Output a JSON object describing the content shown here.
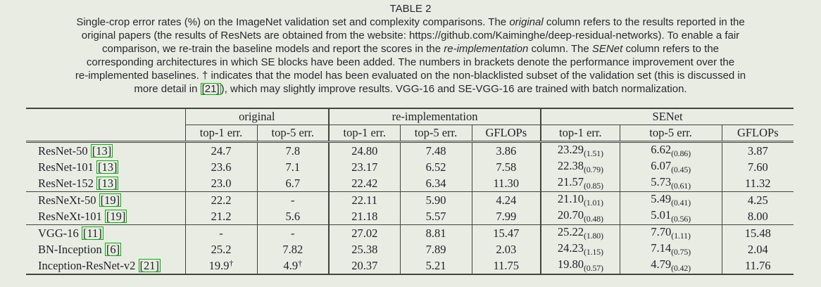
{
  "page": {
    "background_color": "#e9ece3",
    "text_color": "#23262b",
    "rule_color": "#41443f",
    "link_box_color": "#00b400"
  },
  "caption": {
    "title": "TABLE 2",
    "lines": [
      [
        {
          "t": "Single-crop error rates (%) on the ImageNet validation set and complexity comparisons. The "
        },
        {
          "t": "original",
          "i": true
        },
        {
          "t": " column refers to the results reported in the"
        }
      ],
      [
        {
          "t": "original papers (the results of ResNets are obtained from the website: https://github.com/Kaiminghe/deep-residual-networks). To enable a fair"
        }
      ],
      [
        {
          "t": "comparison, we re-train the baseline models and report the scores in the "
        },
        {
          "t": "re-implementation",
          "i": true
        },
        {
          "t": " column. The "
        },
        {
          "t": "SENet",
          "i": true
        },
        {
          "t": " column refers to the"
        }
      ],
      [
        {
          "t": "corresponding architectures in which SE blocks have been added. The numbers in brackets denote the performance improvement over the"
        }
      ],
      [
        {
          "t": "re-implemented baselines. † indicates that the model has been evaluated on the non-blacklisted subset of the validation set (this is discussed in"
        }
      ],
      [
        {
          "t": "more detail in "
        },
        {
          "t": "[21]",
          "cite": true
        },
        {
          "t": "), which may slightly improve results. VGG-16 and SE-VGG-16 are trained with batch normalization."
        }
      ]
    ]
  },
  "table": {
    "group_headers": [
      {
        "label": "original",
        "span": 2
      },
      {
        "label": "re-implementation",
        "span": 3
      },
      {
        "label": "SENet",
        "span": 3
      }
    ],
    "col_headers": [
      "top-1 err.",
      "top-5 err.",
      "top-1 err.",
      "top-5 err.",
      "GFLOPs",
      "top-1 err.",
      "top-5 err.",
      "GFLOPs"
    ],
    "rows": [
      {
        "model": "ResNet-50",
        "cite": "[13]",
        "cells": [
          {
            "v": "24.7"
          },
          {
            "v": "7.8"
          },
          {
            "v": "24.80"
          },
          {
            "v": "7.48"
          },
          {
            "v": "3.86"
          },
          {
            "v": "23.29",
            "sub": "(1.51)"
          },
          {
            "v": "6.62",
            "sub": "(0.86)"
          },
          {
            "v": "3.87"
          }
        ]
      },
      {
        "model": "ResNet-101",
        "cite": "[13]",
        "cells": [
          {
            "v": "23.6"
          },
          {
            "v": "7.1"
          },
          {
            "v": "23.17"
          },
          {
            "v": "6.52"
          },
          {
            "v": "7.58"
          },
          {
            "v": "22.38",
            "sub": "(0.79)"
          },
          {
            "v": "6.07",
            "sub": "(0.45)"
          },
          {
            "v": "7.60"
          }
        ]
      },
      {
        "model": "ResNet-152",
        "cite": "[13]",
        "cells": [
          {
            "v": "23.0"
          },
          {
            "v": "6.7"
          },
          {
            "v": "22.42"
          },
          {
            "v": "6.34"
          },
          {
            "v": "11.30"
          },
          {
            "v": "21.57",
            "sub": "(0.85)"
          },
          {
            "v": "5.73",
            "sub": "(0.61)"
          },
          {
            "v": "11.32"
          }
        ]
      },
      {
        "model": "ResNeXt-50",
        "cite": "[19]",
        "cells": [
          {
            "v": "22.2"
          },
          {
            "v": "-"
          },
          {
            "v": "22.11"
          },
          {
            "v": "5.90"
          },
          {
            "v": "4.24"
          },
          {
            "v": "21.10",
            "sub": "(1.01)"
          },
          {
            "v": "5.49",
            "sub": "(0.41)"
          },
          {
            "v": "4.25"
          }
        ]
      },
      {
        "model": "ResNeXt-101",
        "cite": "[19]",
        "cells": [
          {
            "v": "21.2"
          },
          {
            "v": "5.6"
          },
          {
            "v": "21.18"
          },
          {
            "v": "5.57"
          },
          {
            "v": "7.99"
          },
          {
            "v": "20.70",
            "sub": "(0.48)"
          },
          {
            "v": "5.01",
            "sub": "(0.56)"
          },
          {
            "v": "8.00"
          }
        ]
      },
      {
        "model": "VGG-16",
        "cite": "[11]",
        "cells": [
          {
            "v": "-"
          },
          {
            "v": "-"
          },
          {
            "v": "27.02"
          },
          {
            "v": "8.81"
          },
          {
            "v": "15.47"
          },
          {
            "v": "25.22",
            "sub": "(1.80)"
          },
          {
            "v": "7.70",
            "sub": "(1.11)"
          },
          {
            "v": "15.48"
          }
        ]
      },
      {
        "model": "BN-Inception",
        "cite": "[6]",
        "cells": [
          {
            "v": "25.2"
          },
          {
            "v": "7.82"
          },
          {
            "v": "25.38"
          },
          {
            "v": "7.89"
          },
          {
            "v": "2.03"
          },
          {
            "v": "24.23",
            "sub": "(1.15)"
          },
          {
            "v": "7.14",
            "sub": "(0.75)"
          },
          {
            "v": "2.04"
          }
        ]
      },
      {
        "model": "Inception-ResNet-v2",
        "cite": "[21]",
        "cells": [
          {
            "v": "19.9",
            "sup": "†"
          },
          {
            "v": "4.9",
            "sup": "†"
          },
          {
            "v": "20.37"
          },
          {
            "v": "5.21"
          },
          {
            "v": "11.75"
          },
          {
            "v": "19.80",
            "sub": "(0.57)"
          },
          {
            "v": "4.79",
            "sub": "(0.42)"
          },
          {
            "v": "11.76"
          }
        ]
      }
    ],
    "group_breaks_after": [
      2,
      4
    ]
  }
}
